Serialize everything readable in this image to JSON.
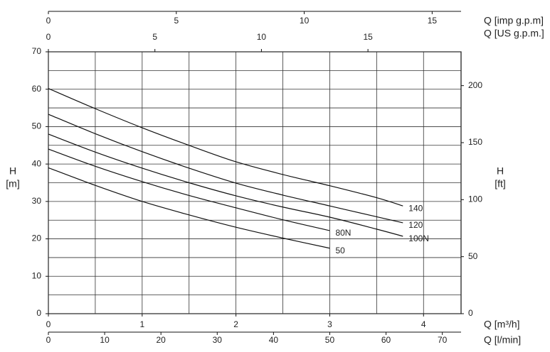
{
  "chart_data": {
    "type": "line",
    "xlabel": "Q [m³/h]",
    "xlim": [
      0,
      4.4
    ],
    "xticks": [
      0,
      1,
      2,
      3,
      4
    ],
    "xgrid": [
      0,
      0.5,
      1,
      1.5,
      2,
      2.5,
      3,
      3.5,
      4
    ],
    "ylabel_lines": [
      "H",
      "[m]"
    ],
    "ylim": [
      0,
      70
    ],
    "yticks": [
      0,
      10,
      20,
      30,
      40,
      50,
      60,
      70
    ],
    "ygrid": [
      0,
      5,
      10,
      15,
      20,
      25,
      30,
      35,
      40,
      45,
      50,
      55,
      60,
      65,
      70
    ],
    "y2label_lines": [
      "H",
      "[ft]"
    ],
    "y2lim": [
      0,
      229.66
    ],
    "y2ticks": [
      0,
      50,
      100,
      150,
      200
    ],
    "extra_x_axes": [
      {
        "label": "Q [l/min]",
        "position": "bottom",
        "xlim": [
          0,
          73.33
        ],
        "xticks": [
          0,
          10,
          20,
          30,
          40,
          50,
          60,
          70
        ]
      },
      {
        "label": "Q [US g.p.m.]",
        "position": "top-inner",
        "xlim": [
          0,
          19.37
        ],
        "xticks": [
          0,
          5,
          10,
          15
        ]
      },
      {
        "label": "Q [imp g.p.m]",
        "position": "top-outer",
        "xlim": [
          0,
          16.13
        ],
        "xticks": [
          0,
          5,
          10,
          15
        ]
      }
    ],
    "color": "#111111",
    "series": [
      {
        "name": "140",
        "x": [
          0,
          0.5,
          1,
          1.5,
          2,
          2.5,
          3,
          3.5,
          3.78
        ],
        "values": [
          60.2,
          54.8,
          49.7,
          45,
          40.6,
          37.2,
          34.2,
          31,
          28.8
        ]
      },
      {
        "name": "120",
        "x": [
          0,
          0.5,
          1,
          1.5,
          2,
          2.5,
          3,
          3.5,
          3.78
        ],
        "values": [
          53.3,
          48.1,
          43.3,
          38.9,
          34.9,
          31.7,
          28.8,
          25.9,
          24.3
        ]
      },
      {
        "name": "100N",
        "x": [
          0,
          0.5,
          1,
          1.5,
          2,
          2.5,
          3,
          3.5,
          3.78
        ],
        "values": [
          48,
          43.2,
          38.9,
          35,
          31.5,
          28.5,
          25.8,
          22.6,
          20.7
        ]
      },
      {
        "name": "80N",
        "x": [
          0,
          0.5,
          1,
          1.5,
          2,
          2.5,
          3
        ],
        "values": [
          44,
          39.4,
          35.3,
          31.6,
          28.3,
          25.1,
          22.2
        ]
      },
      {
        "name": "50",
        "x": [
          0,
          0.5,
          1,
          1.5,
          2,
          2.5,
          3
        ],
        "values": [
          39,
          34.3,
          30,
          26.4,
          23.1,
          20.2,
          17.5
        ]
      }
    ]
  }
}
